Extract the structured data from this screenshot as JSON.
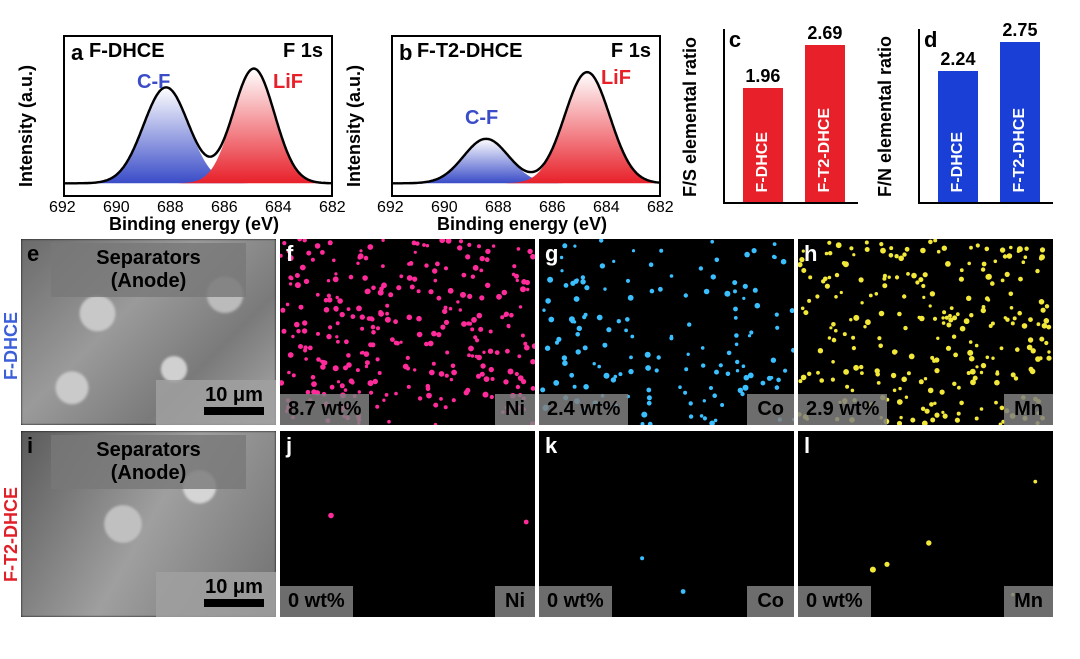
{
  "panels": {
    "a": {
      "label": "a",
      "title_left": "F-DHCE",
      "title_right": "F 1s"
    },
    "b": {
      "label": "b",
      "title_left": "F-T2-DHCE",
      "title_right": "F 1s"
    },
    "c": {
      "label": "c"
    },
    "d": {
      "label": "d"
    },
    "e": {
      "label": "e"
    },
    "f": {
      "label": "f"
    },
    "g": {
      "label": "g"
    },
    "h": {
      "label": "h"
    },
    "i": {
      "label": "i"
    },
    "j": {
      "label": "j"
    },
    "k": {
      "label": "k"
    },
    "l": {
      "label": "l"
    }
  },
  "xps": {
    "ylabel": "Intensity (a.u.)",
    "xlabel": "Binding energy (eV)",
    "ticks": [
      "692",
      "690",
      "688",
      "686",
      "684",
      "682"
    ],
    "peak1_label": "C-F",
    "peak1_color": "#3a4cc8",
    "peak2_label": "LiF",
    "peak2_color": "#e8202a",
    "line_color": "#000000",
    "panel_a": {
      "cf_center_ev": 688.2,
      "cf_height": 0.82,
      "cf_width": 1.2,
      "lif_center_ev": 684.9,
      "lif_height": 0.98,
      "lif_width": 1.1
    },
    "panel_b": {
      "cf_center_ev": 688.5,
      "cf_height": 0.38,
      "cf_width": 1.2,
      "lif_center_ev": 684.7,
      "lif_height": 0.95,
      "lif_width": 1.2
    }
  },
  "bars": {
    "c": {
      "ylabel": "F/S elemental ratio",
      "color": "#e8202a",
      "items": [
        {
          "name": "F-DHCE",
          "value": 1.96
        },
        {
          "name": "F-T2-DHCE",
          "value": 2.69
        }
      ],
      "ymax": 3.0
    },
    "d": {
      "ylabel": "F/N elemental ratio",
      "color": "#1a3fd6",
      "items": [
        {
          "name": "F-DHCE",
          "value": 2.24
        },
        {
          "name": "F-T2-DHCE",
          "value": 2.75
        }
      ],
      "ymax": 3.0
    }
  },
  "sem_rows": {
    "row1_label": "F-DHCE",
    "row1_color": "#3a5fd8",
    "row2_label": "F-T2-DHCE",
    "row2_color": "#e02028",
    "separator_text1": "Separators",
    "separator_text2": "(Anode)",
    "scale_text": "10 μm"
  },
  "eds": {
    "row1": [
      {
        "wt": "8.7 wt%",
        "elem": "Ni",
        "color": "#ff2b9a",
        "density": 300
      },
      {
        "wt": "2.4 wt%",
        "elem": "Co",
        "color": "#3abfff",
        "density": 150
      },
      {
        "wt": "2.9 wt%",
        "elem": "Mn",
        "color": "#f2e83a",
        "density": 260
      }
    ],
    "row2": [
      {
        "wt": "0 wt%",
        "elem": "Ni",
        "color": "#ff2b9a",
        "density": 2
      },
      {
        "wt": "0 wt%",
        "elem": "Co",
        "color": "#3abfff",
        "density": 2
      },
      {
        "wt": "0 wt%",
        "elem": "Mn",
        "color": "#f2e83a",
        "density": 5
      }
    ]
  }
}
